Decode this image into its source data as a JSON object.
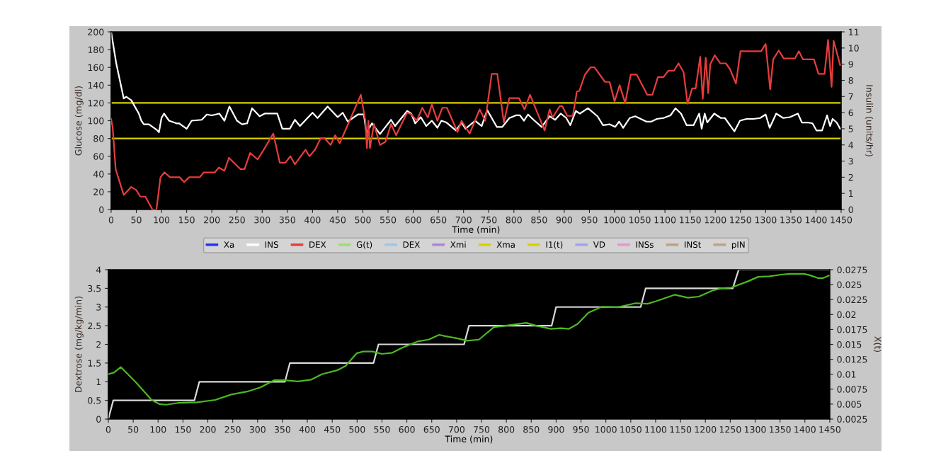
{
  "chart_data": [
    {
      "type": "line",
      "xlabel": "Time (min)",
      "ylabel": "Glucose (mg/dl)",
      "y2label": "Insulin (units/hr)",
      "xlim": [
        0,
        1450
      ],
      "xticks": [
        0,
        50,
        100,
        150,
        200,
        250,
        300,
        350,
        400,
        450,
        500,
        550,
        600,
        650,
        700,
        750,
        800,
        850,
        900,
        950,
        1000,
        1050,
        1100,
        1150,
        1200,
        1250,
        1300,
        1350,
        1400,
        1450
      ],
      "ylim": [
        0,
        200
      ],
      "yticks": [
        0,
        20,
        40,
        60,
        80,
        100,
        120,
        140,
        160,
        180,
        200
      ],
      "y2lim": [
        0,
        11
      ],
      "y2ticks": [
        0,
        1,
        2,
        3,
        4,
        5,
        6,
        7,
        8,
        9,
        10,
        11
      ],
      "grid": false,
      "legend": "bottom",
      "ref_lines": [
        {
          "axis": "y",
          "value": 120,
          "color": "#d8d000"
        },
        {
          "axis": "y",
          "value": 80,
          "color": "#d8d000"
        }
      ],
      "series": [
        {
          "name": "Xa",
          "color": "#2030ff"
        },
        {
          "name": "INS",
          "color": "#ffffff",
          "x": [
            0,
            10,
            25,
            30,
            40,
            55,
            60,
            65,
            75,
            90,
            95,
            100,
            105,
            115,
            130,
            135,
            150,
            160,
            180,
            190,
            200,
            215,
            225,
            235,
            250,
            260,
            270,
            280,
            295,
            305,
            330,
            340,
            355,
            365,
            375,
            400,
            410,
            430,
            450,
            460,
            470,
            490,
            502,
            507,
            518,
            534,
            556,
            564,
            588,
            596,
            604,
            615,
            626,
            637,
            648,
            656,
            666,
            685,
            696,
            704,
            723,
            736,
            747,
            766,
            777,
            791,
            804,
            812,
            820,
            828,
            839,
            855,
            871,
            882,
            893,
            904,
            912,
            923,
            931,
            947,
            966,
            977,
            990,
            1001,
            1009,
            1017,
            1030,
            1041,
            1063,
            1073,
            1084,
            1097,
            1111,
            1121,
            1132,
            1143,
            1157,
            1168,
            1173,
            1179,
            1184,
            1198,
            1211,
            1219,
            1238,
            1249,
            1262,
            1276,
            1289,
            1300,
            1308,
            1321,
            1335,
            1348,
            1364,
            1372,
            1383,
            1393,
            1401,
            1412,
            1422,
            1428,
            1433,
            1441,
            1448
          ],
          "values": [
            200,
            165,
            125,
            127,
            123,
            108,
            100,
            96,
            96,
            90,
            87,
            103,
            108,
            100,
            97,
            97,
            91,
            100,
            101,
            107,
            106,
            108,
            100,
            116,
            100,
            96,
            97,
            114,
            105,
            108,
            108,
            91,
            91,
            101,
            94,
            109,
            103,
            116,
            104,
            109,
            99,
            107,
            107,
            86,
            97,
            85,
            101,
            94,
            111,
            108,
            97,
            104,
            94,
            100,
            92,
            100,
            98,
            89,
            98,
            91,
            100,
            94,
            112,
            93,
            93,
            103,
            106,
            106,
            100,
            107,
            101,
            93,
            105,
            101,
            108,
            103,
            95,
            111,
            108,
            114,
            105,
            95,
            96,
            93,
            99,
            92,
            103,
            105,
            99,
            99,
            102,
            103,
            106,
            114,
            108,
            95,
            95,
            108,
            91,
            108,
            98,
            108,
            103,
            103,
            88,
            100,
            102,
            102,
            103,
            107,
            92,
            108,
            103,
            104,
            108,
            98,
            98,
            97,
            89,
            89,
            106,
            94,
            102,
            98,
            91
          ]
        },
        {
          "name": "DEX",
          "color": "#e83c3c",
          "axis": "y2",
          "x": [
            0,
            3,
            9,
            25,
            40,
            50,
            58,
            68,
            82,
            90,
            98,
            106,
            117,
            136,
            145,
            155,
            176,
            184,
            206,
            214,
            225,
            234,
            257,
            265,
            276,
            291,
            303,
            322,
            335,
            346,
            356,
            365,
            386,
            394,
            405,
            416,
            424,
            436,
            445,
            454,
            496,
            505,
            508,
            511,
            514,
            522,
            534,
            545,
            556,
            566,
            588,
            596,
            607,
            618,
            629,
            637,
            648,
            658,
            667,
            688,
            696,
            712,
            732,
            743,
            756,
            767,
            780,
            791,
            810,
            821,
            832,
            861,
            871,
            877,
            891,
            896,
            906,
            917,
            925,
            930,
            941,
            952,
            960,
            981,
            990,
            1000,
            1010,
            1021,
            1032,
            1044,
            1065,
            1075,
            1086,
            1097,
            1107,
            1118,
            1127,
            1137,
            1145,
            1154,
            1161,
            1170,
            1175,
            1181,
            1186,
            1190,
            1199,
            1210,
            1221,
            1229,
            1241,
            1250,
            1291,
            1300,
            1309,
            1315,
            1326,
            1336,
            1358,
            1366,
            1374,
            1396,
            1405,
            1417,
            1424,
            1431,
            1435,
            1448
          ],
          "values": [
            5.6,
            5.1,
            2.5,
            0.9,
            1.4,
            1.2,
            0.8,
            0.8,
            0,
            0,
            2.0,
            2.3,
            2.0,
            2.0,
            1.7,
            2.0,
            2.0,
            2.3,
            2.3,
            2.6,
            2.4,
            3.2,
            2.5,
            2.5,
            3.5,
            3.1,
            3.7,
            4.7,
            2.9,
            2.9,
            3.3,
            2.8,
            3.7,
            3.3,
            3.7,
            4.4,
            4.4,
            4.0,
            4.6,
            4.1,
            7.1,
            5.5,
            3.8,
            5.5,
            3.8,
            5.3,
            4.0,
            4.2,
            5.3,
            4.6,
            6.0,
            5.9,
            5.5,
            6.3,
            5.7,
            6.5,
            5.5,
            6.3,
            6.3,
            4.8,
            5.5,
            4.7,
            6.2,
            5.5,
            8.4,
            8.4,
            5.4,
            6.9,
            6.9,
            6.2,
            7.1,
            4.9,
            6.2,
            5.7,
            6.4,
            6.4,
            5.8,
            5.8,
            7.3,
            7.35,
            8.35,
            8.8,
            8.8,
            7.9,
            7.9,
            6.7,
            7.7,
            6.6,
            8.35,
            8.35,
            7.1,
            7.1,
            8.2,
            8.2,
            8.6,
            8.6,
            9.05,
            8.5,
            6.55,
            7.5,
            7.5,
            9.45,
            6.85,
            9.4,
            7.2,
            9.0,
            9.55,
            9.05,
            9.05,
            8.7,
            7.8,
            9.8,
            9.8,
            10.25,
            7.45,
            9.3,
            9.85,
            9.35,
            9.35,
            9.8,
            9.3,
            9.3,
            8.4,
            8.4,
            10.5,
            7.6,
            10.45,
            8.95
          ]
        },
        {
          "name": "G(t)",
          "color": "#98e070"
        },
        {
          "name": "DEX",
          "color": "#98c8e8"
        },
        {
          "name": "Xmi",
          "color": "#b080e0"
        },
        {
          "name": "Xma",
          "color": "#d8d000"
        },
        {
          "name": "I1(t)",
          "color": "#d8d000"
        },
        {
          "name": "VD",
          "color": "#a0a0f0"
        },
        {
          "name": "INSs",
          "color": "#f090d0"
        },
        {
          "name": "INSt",
          "color": "#c0a080"
        },
        {
          "name": "pIN",
          "color": "#c0a080"
        }
      ]
    },
    {
      "type": "line",
      "xlabel": "Time (min)",
      "ylabel": "Dextrose (mg/kg/min)",
      "y2label": "X(t)",
      "xlim": [
        0,
        1450
      ],
      "xticks": [
        0,
        50,
        100,
        150,
        200,
        250,
        300,
        350,
        400,
        450,
        500,
        550,
        600,
        650,
        700,
        750,
        800,
        850,
        900,
        950,
        1000,
        1050,
        1100,
        1150,
        1200,
        1250,
        1300,
        1350,
        1400,
        1450
      ],
      "ylim": [
        0,
        4
      ],
      "yticks": [
        0,
        0.5,
        1,
        1.5,
        2,
        2.5,
        3,
        3.5,
        4
      ],
      "y2lim": [
        0.0025,
        0.0275
      ],
      "y2ticks": [
        0.0025,
        0.005,
        0.0075,
        0.01,
        0.0125,
        0.015,
        0.0175,
        0.02,
        0.0225,
        0.025,
        0.0275
      ],
      "grid": false,
      "series": [
        {
          "color": "#d8d8d8",
          "x": [
            0,
            10,
            173,
            183,
            355,
            365,
            533,
            543,
            715,
            725,
            891,
            900,
            1070,
            1080,
            1255,
            1267,
            1450
          ],
          "values": [
            0,
            0.5,
            0.5,
            1,
            1,
            1.5,
            1.5,
            2,
            2,
            2.5,
            2.5,
            3,
            3,
            3.5,
            3.5,
            4,
            4
          ]
        },
        {
          "color": "#4cb820",
          "axis": "y2",
          "x": [
            0,
            12,
            25,
            55,
            87,
            103,
            116,
            140,
            178,
            215,
            247,
            279,
            306,
            333,
            354,
            381,
            408,
            429,
            461,
            477,
            499,
            512,
            531,
            550,
            571,
            590,
            622,
            644,
            665,
            675,
            702,
            721,
            745,
            775,
            796,
            840,
            861,
            889,
            910,
            926,
            943,
            965,
            992,
            1024,
            1060,
            1084,
            1100,
            1138,
            1165,
            1187,
            1214,
            1233,
            1252,
            1284,
            1306,
            1328,
            1355,
            1371,
            1398,
            1409,
            1426,
            1437,
            1448
          ],
          "values": [
            0.01,
            0.0103,
            0.0112,
            0.0087,
            0.0057,
            0.005,
            0.0049,
            0.0052,
            0.0053,
            0.0057,
            0.0066,
            0.0071,
            0.0078,
            0.009,
            0.009,
            0.0088,
            0.0091,
            0.01,
            0.0107,
            0.0114,
            0.0135,
            0.0138,
            0.0138,
            0.0134,
            0.0136,
            0.0144,
            0.0155,
            0.0158,
            0.0166,
            0.0164,
            0.016,
            0.0156,
            0.0158,
            0.0179,
            0.0181,
            0.0186,
            0.0181,
            0.0176,
            0.0177,
            0.0176,
            0.0184,
            0.0203,
            0.0213,
            0.0212,
            0.0219,
            0.0218,
            0.0222,
            0.0233,
            0.0228,
            0.023,
            0.024,
            0.0244,
            0.0245,
            0.0255,
            0.0263,
            0.0264,
            0.0267,
            0.0268,
            0.0268,
            0.0266,
            0.0261,
            0.0261,
            0.0265
          ]
        }
      ]
    }
  ]
}
